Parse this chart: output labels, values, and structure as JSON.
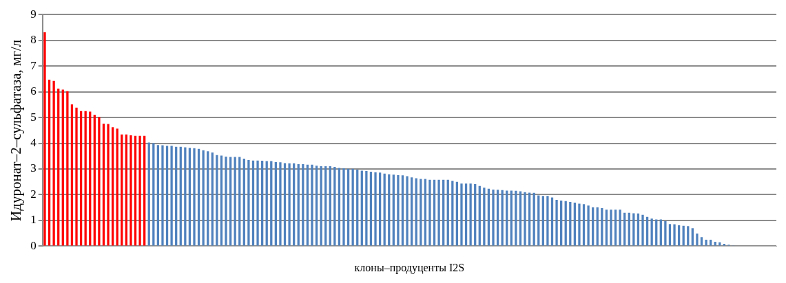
{
  "chart_data": {
    "type": "bar",
    "xlabel": "клоны–продуценты I2S",
    "ylabel": "Идуронат–2–сульфатаза, мг/л",
    "categories": [
      null,
      null,
      null,
      null,
      null,
      null,
      null,
      null,
      null,
      null,
      null,
      null,
      null,
      null,
      null,
      null,
      null,
      null,
      null,
      null,
      null,
      null,
      null,
      null,
      null,
      null,
      null,
      null,
      null,
      null,
      null,
      null,
      null,
      null,
      null,
      null,
      null,
      null,
      null,
      null,
      null,
      null,
      null,
      null,
      null,
      null,
      null,
      null,
      null,
      null,
      null,
      null,
      null,
      null,
      null,
      null,
      null,
      null,
      null,
      null,
      null,
      null,
      null,
      null,
      null,
      null,
      null,
      null,
      null,
      null,
      null,
      null,
      null,
      null,
      null,
      null,
      null,
      null,
      null,
      null,
      null,
      null,
      null,
      null,
      null,
      null,
      null,
      null,
      null,
      null,
      null,
      null,
      null,
      null,
      null,
      null,
      null,
      null,
      null,
      null,
      null,
      null,
      null,
      null,
      null,
      null,
      null,
      null,
      null,
      null,
      null,
      null,
      null,
      null,
      null,
      null,
      null,
      null,
      null,
      null,
      null,
      null,
      null,
      null,
      null,
      null,
      null,
      null,
      null,
      null,
      null,
      null,
      null,
      null,
      null,
      null,
      null,
      null,
      null,
      null,
      null,
      null,
      null,
      null,
      null,
      null,
      null,
      null,
      null,
      null,
      null,
      null,
      null,
      null,
      null,
      null,
      null,
      null,
      null,
      null,
      null,
      null
    ],
    "values": [
      8.31,
      6.47,
      6.42,
      6.12,
      6.08,
      6.02,
      5.51,
      5.38,
      5.25,
      5.25,
      5.23,
      5.1,
      5.02,
      4.76,
      4.75,
      4.62,
      4.57,
      4.34,
      4.34,
      4.31,
      4.29,
      4.29,
      4.29,
      4.03,
      4.0,
      3.93,
      3.92,
      3.9,
      3.9,
      3.86,
      3.86,
      3.84,
      3.82,
      3.81,
      3.78,
      3.73,
      3.69,
      3.64,
      3.54,
      3.52,
      3.48,
      3.47,
      3.47,
      3.47,
      3.4,
      3.35,
      3.33,
      3.33,
      3.32,
      3.31,
      3.31,
      3.27,
      3.26,
      3.23,
      3.22,
      3.22,
      3.19,
      3.19,
      3.17,
      3.17,
      3.13,
      3.11,
      3.11,
      3.11,
      3.08,
      3.04,
      3.03,
      3.01,
      3.01,
      2.97,
      2.93,
      2.92,
      2.89,
      2.87,
      2.86,
      2.82,
      2.79,
      2.78,
      2.76,
      2.75,
      2.72,
      2.67,
      2.64,
      2.61,
      2.61,
      2.58,
      2.58,
      2.58,
      2.58,
      2.58,
      2.54,
      2.5,
      2.43,
      2.43,
      2.43,
      2.41,
      2.34,
      2.27,
      2.23,
      2.2,
      2.19,
      2.18,
      2.16,
      2.16,
      2.15,
      2.13,
      2.1,
      2.08,
      2.07,
      1.97,
      1.95,
      1.95,
      1.89,
      1.8,
      1.77,
      1.75,
      1.72,
      1.69,
      1.65,
      1.63,
      1.58,
      1.51,
      1.51,
      1.48,
      1.42,
      1.42,
      1.42,
      1.42,
      1.3,
      1.3,
      1.28,
      1.27,
      1.22,
      1.14,
      1.07,
      1.04,
      1.04,
      0.97,
      0.86,
      0.85,
      0.81,
      0.79,
      0.78,
      0.7,
      0.49,
      0.35,
      0.25,
      0.25,
      0.17,
      0.15,
      0.09,
      0.06,
      0.03,
      0,
      0,
      0,
      0,
      0,
      0,
      0,
      0,
      0
    ],
    "colors": [
      "#ff0000",
      "#ff0000",
      "#ff0000",
      "#ff0000",
      "#ff0000",
      "#ff0000",
      "#ff0000",
      "#ff0000",
      "#ff0000",
      "#ff0000",
      "#ff0000",
      "#ff0000",
      "#ff0000",
      "#ff0000",
      "#ff0000",
      "#ff0000",
      "#ff0000",
      "#ff0000",
      "#ff0000",
      "#ff0000",
      "#ff0000",
      "#ff0000",
      "#ff0000",
      "#4f81bd",
      "#4f81bd",
      "#4f81bd",
      "#4f81bd",
      "#4f81bd",
      "#4f81bd",
      "#4f81bd",
      "#4f81bd",
      "#4f81bd",
      "#4f81bd",
      "#4f81bd",
      "#4f81bd",
      "#4f81bd",
      "#4f81bd",
      "#4f81bd",
      "#4f81bd",
      "#4f81bd",
      "#4f81bd",
      "#4f81bd",
      "#4f81bd",
      "#4f81bd",
      "#4f81bd",
      "#4f81bd",
      "#4f81bd",
      "#4f81bd",
      "#4f81bd",
      "#4f81bd",
      "#4f81bd",
      "#4f81bd",
      "#4f81bd",
      "#4f81bd",
      "#4f81bd",
      "#4f81bd",
      "#4f81bd",
      "#4f81bd",
      "#4f81bd",
      "#4f81bd",
      "#4f81bd",
      "#4f81bd",
      "#4f81bd",
      "#4f81bd",
      "#4f81bd",
      "#4f81bd",
      "#4f81bd",
      "#4f81bd",
      "#4f81bd",
      "#4f81bd",
      "#4f81bd",
      "#4f81bd",
      "#4f81bd",
      "#4f81bd",
      "#4f81bd",
      "#4f81bd",
      "#4f81bd",
      "#4f81bd",
      "#4f81bd",
      "#4f81bd",
      "#4f81bd",
      "#4f81bd",
      "#4f81bd",
      "#4f81bd",
      "#4f81bd",
      "#4f81bd",
      "#4f81bd",
      "#4f81bd",
      "#4f81bd",
      "#4f81bd",
      "#4f81bd",
      "#4f81bd",
      "#4f81bd",
      "#4f81bd",
      "#4f81bd",
      "#4f81bd",
      "#4f81bd",
      "#4f81bd",
      "#4f81bd",
      "#4f81bd",
      "#4f81bd",
      "#4f81bd",
      "#4f81bd",
      "#4f81bd",
      "#4f81bd",
      "#4f81bd",
      "#4f81bd",
      "#4f81bd",
      "#4f81bd",
      "#4f81bd",
      "#4f81bd",
      "#4f81bd",
      "#4f81bd",
      "#4f81bd",
      "#4f81bd",
      "#4f81bd",
      "#4f81bd",
      "#4f81bd",
      "#4f81bd",
      "#4f81bd",
      "#4f81bd",
      "#4f81bd",
      "#4f81bd",
      "#4f81bd",
      "#4f81bd",
      "#4f81bd",
      "#4f81bd",
      "#4f81bd",
      "#4f81bd",
      "#4f81bd",
      "#4f81bd",
      "#4f81bd",
      "#4f81bd",
      "#4f81bd",
      "#4f81bd",
      "#4f81bd",
      "#4f81bd",
      "#4f81bd",
      "#4f81bd",
      "#4f81bd",
      "#4f81bd",
      "#4f81bd",
      "#4f81bd",
      "#4f81bd",
      "#4f81bd",
      "#4f81bd",
      "#4f81bd",
      "#4f81bd",
      "#4f81bd",
      "#4f81bd",
      "#4f81bd",
      "#4f81bd",
      "#4f81bd",
      "#4f81bd",
      "#4f81bd",
      "#4f81bd",
      "#4f81bd",
      "#4f81bd",
      "#4f81bd",
      "#4f81bd",
      "#4f81bd",
      "#4f81bd"
    ],
    "ylim": [
      0,
      9
    ],
    "yticks": [
      0,
      1,
      2,
      3,
      4,
      5,
      6,
      7,
      8,
      9
    ],
    "grid": "y",
    "legend": false
  }
}
